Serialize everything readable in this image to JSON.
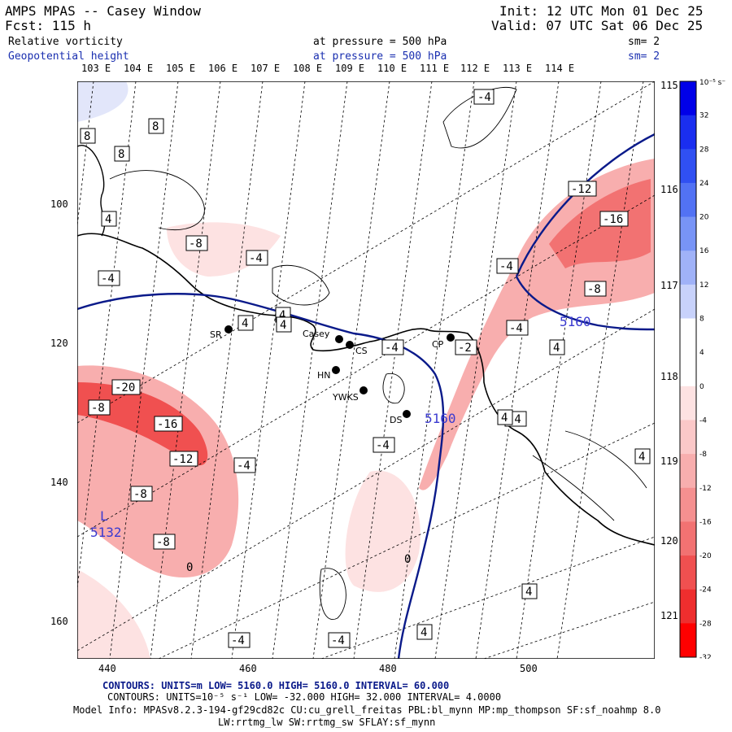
{
  "header": {
    "title": "AMPS MPAS -- Casey Window",
    "fcst": "Fcst:  115 h",
    "init": "Init: 12 UTC Mon 01 Dec 25",
    "valid": "Valid: 07 UTC Sat 06 Dec 25",
    "field1": "Relative vorticity",
    "field2": "Geopotential height",
    "level1": "at pressure =  500 hPa",
    "level2": "at pressure =  500 hPa",
    "sm1": "sm= 2",
    "sm2": "sm= 2"
  },
  "lon_labels": [
    "103 E",
    "104 E",
    "105 E",
    "106 E",
    "107 E",
    "108 E",
    "109 E",
    "110 E",
    "111 E",
    "112 E",
    "113 E",
    "114 E"
  ],
  "lat_labels_right": [
    "115 E",
    "116 E",
    "117 E",
    "118 E",
    "119 E",
    "120 E",
    "121 E"
  ],
  "y_ticks": [
    "100",
    "120",
    "140",
    "160"
  ],
  "x_ticks": [
    "440",
    "460",
    "480",
    "500"
  ],
  "stations": [
    "SR",
    "Casey",
    "CS",
    "HN",
    "YWKS",
    "DS",
    "CP"
  ],
  "height_labels": [
    "5160",
    "5160",
    "5132"
  ],
  "low_marker": "L",
  "vort_labels": [
    "-4",
    "8",
    "8",
    "8",
    "4",
    "-8",
    "-4",
    "-4",
    "4",
    "4",
    "-4",
    "-2",
    "-4",
    "-4",
    "-12",
    "-16",
    "-8",
    "-8",
    "-4",
    "4",
    "-20",
    "-8",
    "-16",
    "-12",
    "-4",
    "-8",
    "-4",
    "0",
    "-4",
    "-4",
    "4",
    "4",
    "4",
    "4",
    "0",
    "4"
  ],
  "colorbar": {
    "unit": "10⁻⁵ s⁻¹",
    "labels": [
      "32",
      "28",
      "24",
      "20",
      "16",
      "12",
      "8",
      "4",
      "0",
      "-4",
      "-8",
      "-12",
      "-16",
      "-20",
      "-24",
      "-28",
      "-32"
    ],
    "colors": [
      "#0000e8",
      "#1a2ef0",
      "#3050f2",
      "#5272f4",
      "#7894f6",
      "#a0b2f8",
      "#c8d2fb",
      "#ffffff",
      "#ffffff",
      "#fde2e2",
      "#fbc8c8",
      "#f8aeae",
      "#f59090",
      "#f27272",
      "#f05050",
      "#ee2e2e",
      "#ff0000"
    ]
  },
  "footer": {
    "line1": "CONTOURS: UNITS=m  LOW=  5160.0       HIGH=  5160.0       INTERVAL=  60.000",
    "line2": "CONTOURS: UNITS=10⁻⁵ s⁻¹  LOW= -32.000       HIGH=  32.000        INTERVAL=  4.0000",
    "line3": "Model Info: MPASv8.2.3-194-gf29cd82c CU:cu_grell_freitas PBL:bl_mynn MP:mp_thompson SF:sf_noahmp 8.0",
    "line4": "LW:rrtmg_lw SW:rrtmg_sw SFLAY:sf_mynn"
  }
}
